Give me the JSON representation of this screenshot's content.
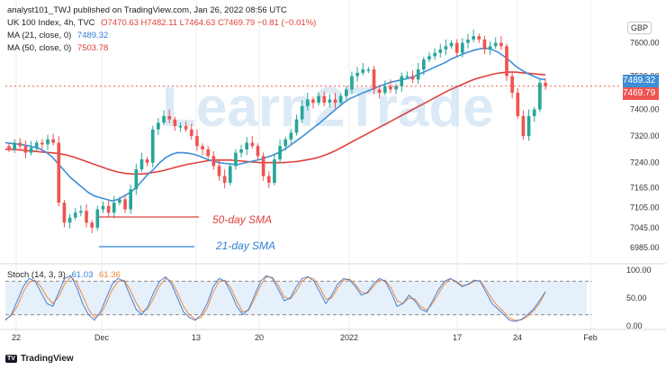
{
  "header": {
    "publisher": "analyst101_TWJ published on TradingView.com, Jan 26, 2022 08:56 UTC",
    "symbol": "UK 100 Index, 4h, TVC",
    "ohlc": "O7470.63  H7482.11  L7464.63  C7469.79  −0.81 (−0.01%)",
    "ma21_label": "MA (21, close, 0)",
    "ma21_value": "7489.32",
    "ma50_label": "MA (50, close, 0)",
    "ma50_value": "7503.78",
    "currency": "GBP"
  },
  "watermark": "Learn2Trade",
  "annotations": {
    "sma50": "50-day SMA",
    "sma21": "21-day SMA"
  },
  "stoch": {
    "label": "Stoch (14, 3, 3)",
    "k_value": "61.03",
    "d_value": "61.36"
  },
  "footer": {
    "brand": "TradingView",
    "logo_text": "TV"
  },
  "colors": {
    "up": "#26a69a",
    "down": "#ef5350",
    "ma21": "#3d8ed8",
    "ma50": "#e0403a",
    "stoch_k": "#4a7fd4",
    "stoch_d": "#f08a3a",
    "band": "#e5f0fb"
  },
  "chart_data": [
    {
      "type": "candlestick",
      "title": "UK 100 Index, 4h, TVC",
      "ylim": [
        6950,
        7680
      ],
      "y_ticks": [
        "7600.00",
        "7500.00",
        "7400.00",
        "7320.00",
        "7240.00",
        "7165.00",
        "7105.00",
        "7045.00",
        "6985.00"
      ],
      "x_ticks": [
        "22",
        "Dec",
        "13",
        "20",
        "2022",
        "17",
        "24",
        "Feb"
      ],
      "current_price": "7469.79",
      "ma21_last": "7489.32",
      "ma50_last": "7503.78",
      "closes": [
        7280,
        7300,
        7290,
        7270,
        7285,
        7300,
        7295,
        7310,
        7300,
        7120,
        7060,
        7075,
        7090,
        7095,
        7060,
        7045,
        7100,
        7110,
        7090,
        7120,
        7130,
        7100,
        7160,
        7220,
        7250,
        7240,
        7340,
        7360,
        7380,
        7370,
        7350,
        7350,
        7340,
        7320,
        7290,
        7280,
        7260,
        7230,
        7200,
        7180,
        7230,
        7270,
        7280,
        7300,
        7290,
        7260,
        7200,
        7180,
        7250,
        7290,
        7310,
        7330,
        7370,
        7410,
        7430,
        7420,
        7440,
        7420,
        7430,
        7420,
        7440,
        7460,
        7500,
        7510,
        7520,
        7520,
        7460,
        7450,
        7470,
        7460,
        7470,
        7500,
        7500,
        7490,
        7520,
        7550,
        7560,
        7570,
        7580,
        7590,
        7600,
        7570,
        7600,
        7610,
        7620,
        7610,
        7580,
        7590,
        7600,
        7590,
        7500,
        7450,
        7380,
        7320,
        7380,
        7400,
        7480,
        7470
      ],
      "ma21": [
        7300,
        7298,
        7296,
        7294,
        7290,
        7286,
        7280,
        7270,
        7255,
        7235,
        7215,
        7195,
        7180,
        7165,
        7150,
        7140,
        7135,
        7130,
        7125,
        7130,
        7140,
        7150,
        7165,
        7185,
        7205,
        7220,
        7240,
        7255,
        7265,
        7270,
        7270,
        7268,
        7264,
        7258,
        7250,
        7245,
        7240,
        7238,
        7236,
        7234,
        7238,
        7242,
        7246,
        7250,
        7256,
        7262,
        7270,
        7280,
        7292,
        7305,
        7318,
        7332,
        7346,
        7360,
        7375,
        7390,
        7405,
        7420,
        7432,
        7440,
        7448,
        7455,
        7462,
        7470,
        7476,
        7482,
        7486,
        7490,
        7494,
        7500,
        7508,
        7516,
        7524,
        7532,
        7540,
        7550,
        7558,
        7566,
        7572,
        7578,
        7582,
        7584,
        7580,
        7572,
        7560,
        7546,
        7530,
        7518,
        7508,
        7500,
        7492,
        7489
      ],
      "ma50": [
        7280,
        7280,
        7278,
        7276,
        7274,
        7272,
        7270,
        7268,
        7264,
        7258,
        7250,
        7242,
        7234,
        7226,
        7218,
        7212,
        7208,
        7206,
        7206,
        7208,
        7212,
        7216,
        7222,
        7228,
        7234,
        7238,
        7242,
        7246,
        7248,
        7248,
        7248,
        7246,
        7244,
        7242,
        7240,
        7240,
        7240,
        7240,
        7242,
        7244,
        7248,
        7252,
        7258,
        7266,
        7276,
        7288,
        7300,
        7312,
        7324,
        7336,
        7348,
        7360,
        7372,
        7384,
        7396,
        7408,
        7420,
        7432,
        7444,
        7456,
        7466,
        7476,
        7486,
        7494,
        7500,
        7506,
        7510,
        7512,
        7512,
        7510,
        7508,
        7506,
        7504
      ],
      "stoch_ylim": [
        0,
        100
      ],
      "stoch_ticks": [
        "100.00",
        "50.00",
        "0.00"
      ],
      "stoch_k": [
        10,
        20,
        45,
        70,
        85,
        80,
        60,
        40,
        35,
        60,
        85,
        90,
        70,
        40,
        20,
        10,
        25,
        50,
        75,
        85,
        80,
        55,
        30,
        20,
        35,
        60,
        80,
        88,
        75,
        50,
        25,
        15,
        10,
        20,
        40,
        70,
        85,
        80,
        60,
        35,
        20,
        30,
        55,
        80,
        90,
        85,
        65,
        45,
        50,
        70,
        85,
        88,
        80,
        60,
        40,
        55,
        75,
        85,
        82,
        70,
        55,
        60,
        75,
        85,
        80,
        60,
        35,
        40,
        55,
        45,
        30,
        25,
        45,
        65,
        80,
        85,
        78,
        70,
        75,
        82,
        80,
        60,
        40,
        30,
        20,
        10,
        8,
        12,
        20,
        30,
        45,
        61
      ],
      "stoch_d": [
        12,
        18,
        35,
        60,
        78,
        82,
        70,
        52,
        40,
        52,
        75,
        88,
        78,
        55,
        30,
        15,
        20,
        40,
        65,
        80,
        82,
        65,
        42,
        25,
        30,
        50,
        72,
        85,
        80,
        60,
        35,
        20,
        12,
        15,
        32,
        60,
        80,
        82,
        68,
        45,
        25,
        28,
        48,
        72,
        88,
        87,
        72,
        52,
        48,
        62,
        80,
        87,
        84,
        68,
        48,
        50,
        68,
        82,
        84,
        74,
        60,
        58,
        70,
        82,
        82,
        68,
        45,
        40,
        50,
        48,
        35,
        28,
        40,
        58,
        75,
        84,
        80,
        72,
        74,
        80,
        81,
        66,
        48,
        35,
        25,
        14,
        10,
        11,
        17,
        27,
        40,
        61
      ]
    }
  ]
}
